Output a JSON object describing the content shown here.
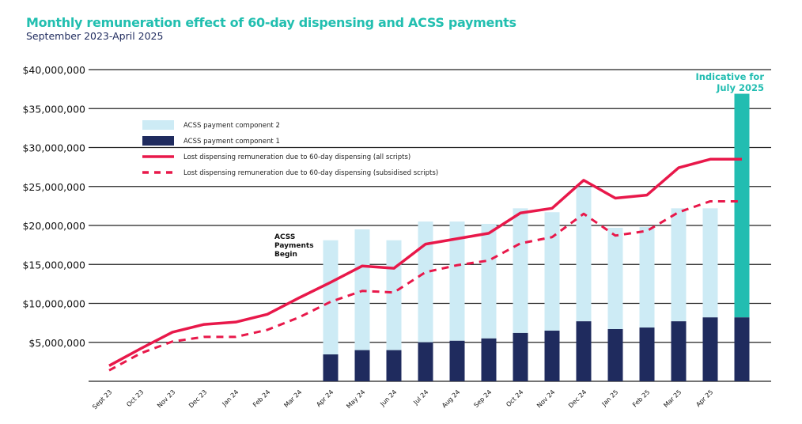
{
  "chart_data": {
    "type": "bar",
    "title": "Monthly remuneration effect of 60-day dispensing and ACSS payments",
    "subtitle": "September 2023-April 2025",
    "xlabel": "",
    "ylabel": "",
    "ylim": [
      0,
      40000000
    ],
    "yticks": [
      5000000,
      10000000,
      15000000,
      20000000,
      25000000,
      30000000,
      35000000,
      40000000
    ],
    "ytick_labels": [
      "$5,000,000",
      "$10,000,000",
      "$15,000,000",
      "$20,000,000",
      "$25,000,000",
      "$30,000,000",
      "$35,000,000",
      "$40,000,000"
    ],
    "grid": true,
    "legend_position": "top-left",
    "categories": [
      "Sept 23",
      "Oct 23",
      "Nov 23",
      "Dec 23",
      "Jan 24",
      "Feb 24",
      "Mar 24",
      "Apr 24",
      "May 24",
      "Jun 24",
      "Jul 24",
      "Aug 24",
      "Sep 24",
      "Oct 24",
      "Nov 24",
      "Dec 24",
      "Jan 25",
      "Feb 25",
      "Mar 25",
      "Apr 25",
      ""
    ],
    "series": [
      {
        "name": "ACSS payment component 1",
        "kind": "bar-stack",
        "color": "#1f2b5e",
        "values": [
          null,
          null,
          null,
          null,
          null,
          null,
          null,
          3.45,
          4.0,
          4.0,
          5.0,
          5.2,
          5.5,
          6.2,
          6.5,
          7.7,
          6.7,
          6.9,
          7.7,
          8.2,
          8.2
        ]
      },
      {
        "name": "ACSS payment component 2",
        "kind": "bar-stack",
        "color": "#cdebf5",
        "values": [
          null,
          null,
          null,
          null,
          null,
          null,
          null,
          14.65,
          15.5,
          14.1,
          15.5,
          15.3,
          14.7,
          16.0,
          15.2,
          17.2,
          13.0,
          12.9,
          14.5,
          14.0,
          28.7
        ]
      },
      {
        "name": "Lost dispensing remuneration due to 60-day dispensing (all scripts)",
        "kind": "line",
        "color": "#e8184a",
        "values": [
          2.0,
          4.2,
          6.3,
          7.3,
          7.6,
          8.6,
          10.7,
          12.7,
          14.8,
          14.5,
          17.6,
          18.3,
          19.0,
          21.6,
          22.2,
          25.8,
          23.5,
          23.9,
          27.4,
          28.5,
          28.5
        ]
      },
      {
        "name": "Lost dispensing remuneration due to 60-day dispensing (subsidised scripts)",
        "kind": "dashed-line",
        "color": "#e8184a",
        "values": [
          1.4,
          3.6,
          5.1,
          5.7,
          5.7,
          6.6,
          8.2,
          10.2,
          11.6,
          11.4,
          14.0,
          14.9,
          15.5,
          17.7,
          18.5,
          21.5,
          18.7,
          19.3,
          21.7,
          23.1,
          23.1
        ]
      }
    ],
    "value_unit_multiplier": 1000000,
    "legend_order": [
      1,
      0,
      2,
      3
    ],
    "indicative_bar": {
      "index": 20,
      "label_line1": "Indicative for",
      "label_line2": "July 2025",
      "color": "#22bdb1"
    },
    "annotations": [
      {
        "index": 7,
        "lines": [
          "ACSS",
          "Payments",
          "Begin"
        ]
      }
    ]
  }
}
